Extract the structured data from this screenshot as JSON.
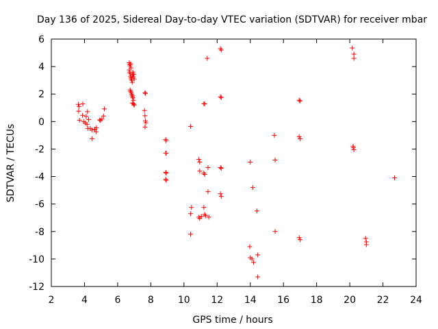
{
  "chart_data": {
    "type": "scatter",
    "title": "Day 136 of 2025, Sidereal Day-to-day VTEC variation (SDTVAR) for receiver mbar",
    "xlabel": "GPS time / hours",
    "ylabel": "SDTVAR / TECUs",
    "xlim": [
      2,
      24
    ],
    "ylim": [
      -12,
      6
    ],
    "xticks": [
      "2",
      "4",
      "6",
      "8",
      "10",
      "12",
      "14",
      "16",
      "18",
      "20",
      "22",
      "24"
    ],
    "yticks": [
      "6",
      "4",
      "2",
      "0",
      "-2",
      "-4",
      "-6",
      "-8",
      "-10",
      "-12"
    ],
    "grid": false,
    "marker": "plus",
    "color": "#ff0000",
    "series": [
      {
        "name": "SDTVAR",
        "points": [
          [
            3.63,
            1.25
          ],
          [
            3.67,
            1.1
          ],
          [
            3.65,
            0.75
          ],
          [
            3.7,
            0.1
          ],
          [
            3.9,
            1.28
          ],
          [
            3.88,
            0.45
          ],
          [
            3.95,
            0.0
          ],
          [
            4.05,
            -0.1
          ],
          [
            4.1,
            0.38
          ],
          [
            4.15,
            -0.2
          ],
          [
            4.18,
            0.72
          ],
          [
            4.2,
            -0.5
          ],
          [
            4.25,
            0.15
          ],
          [
            4.35,
            -0.5
          ],
          [
            4.45,
            -0.62
          ],
          [
            4.45,
            -1.25
          ],
          [
            4.62,
            -0.55
          ],
          [
            4.7,
            -0.75
          ],
          [
            4.72,
            -0.45
          ],
          [
            4.92,
            0.12
          ],
          [
            4.96,
            0.08
          ],
          [
            5.05,
            0.18
          ],
          [
            5.15,
            0.4
          ],
          [
            5.2,
            0.92
          ],
          [
            6.7,
            4.28
          ],
          [
            6.72,
            4.15
          ],
          [
            6.75,
            4.05
          ],
          [
            6.78,
            4.2
          ],
          [
            6.8,
            3.9
          ],
          [
            6.7,
            3.75
          ],
          [
            6.72,
            3.6
          ],
          [
            6.75,
            3.5
          ],
          [
            6.78,
            3.3
          ],
          [
            6.8,
            3.2
          ],
          [
            6.82,
            3.1
          ],
          [
            6.85,
            3.0
          ],
          [
            6.88,
            2.85
          ],
          [
            6.9,
            3.4
          ],
          [
            6.92,
            3.6
          ],
          [
            6.95,
            3.25
          ],
          [
            6.98,
            3.45
          ],
          [
            7.0,
            3.1
          ],
          [
            6.75,
            2.3
          ],
          [
            6.78,
            2.2
          ],
          [
            6.82,
            2.1
          ],
          [
            6.85,
            1.98
          ],
          [
            6.88,
            1.88
          ],
          [
            6.9,
            1.8
          ],
          [
            6.92,
            1.72
          ],
          [
            6.95,
            1.55
          ],
          [
            6.9,
            1.35
          ],
          [
            6.95,
            1.3
          ],
          [
            6.98,
            1.22
          ],
          [
            7.0,
            1.2
          ],
          [
            7.65,
            2.1
          ],
          [
            7.68,
            2.05
          ],
          [
            7.62,
            0.8
          ],
          [
            7.65,
            0.42
          ],
          [
            7.67,
            0.05
          ],
          [
            7.7,
            -0.08
          ],
          [
            7.65,
            -0.4
          ],
          [
            8.9,
            -1.3
          ],
          [
            8.92,
            -1.4
          ],
          [
            8.9,
            -2.3
          ],
          [
            8.93,
            -2.3
          ],
          [
            8.9,
            -3.7
          ],
          [
            8.93,
            -3.75
          ],
          [
            8.9,
            -4.2
          ],
          [
            8.93,
            -4.28
          ],
          [
            10.4,
            -0.35
          ],
          [
            10.45,
            -6.25
          ],
          [
            10.4,
            -6.7
          ],
          [
            10.4,
            -8.2
          ],
          [
            10.9,
            -2.75
          ],
          [
            10.95,
            -2.95
          ],
          [
            10.95,
            -3.6
          ],
          [
            10.9,
            -6.95
          ],
          [
            10.95,
            -7.05
          ],
          [
            11.05,
            -6.9
          ],
          [
            11.2,
            1.3
          ],
          [
            11.25,
            1.28
          ],
          [
            11.2,
            -3.75
          ],
          [
            11.25,
            -3.85
          ],
          [
            11.2,
            -6.25
          ],
          [
            11.25,
            -6.75
          ],
          [
            11.3,
            -6.85
          ],
          [
            11.4,
            4.6
          ],
          [
            11.45,
            -3.35
          ],
          [
            11.45,
            -5.1
          ],
          [
            11.5,
            -6.95
          ],
          [
            12.2,
            5.3
          ],
          [
            12.25,
            5.2
          ],
          [
            12.2,
            1.8
          ],
          [
            12.25,
            1.75
          ],
          [
            12.2,
            -3.35
          ],
          [
            12.25,
            -3.4
          ],
          [
            12.2,
            -5.25
          ],
          [
            12.25,
            -5.45
          ],
          [
            14.0,
            -2.95
          ],
          [
            13.97,
            -9.1
          ],
          [
            14.0,
            -9.9
          ],
          [
            14.1,
            -10.0
          ],
          [
            14.15,
            -4.8
          ],
          [
            14.2,
            -10.25
          ],
          [
            14.4,
            -6.5
          ],
          [
            14.45,
            -9.7
          ],
          [
            14.45,
            -11.3
          ],
          [
            15.45,
            -1.0
          ],
          [
            15.5,
            -2.8
          ],
          [
            15.5,
            -8.0
          ],
          [
            16.95,
            1.55
          ],
          [
            17.0,
            1.5
          ],
          [
            16.95,
            -1.1
          ],
          [
            17.0,
            -1.25
          ],
          [
            16.95,
            -8.45
          ],
          [
            17.0,
            -8.6
          ],
          [
            20.15,
            5.35
          ],
          [
            20.25,
            4.9
          ],
          [
            20.25,
            4.6
          ],
          [
            20.2,
            -1.8
          ],
          [
            20.22,
            -1.9
          ],
          [
            20.25,
            -2.05
          ],
          [
            20.95,
            -8.5
          ],
          [
            21.0,
            -8.75
          ],
          [
            21.0,
            -8.95
          ],
          [
            22.7,
            -4.1
          ]
        ]
      }
    ]
  }
}
